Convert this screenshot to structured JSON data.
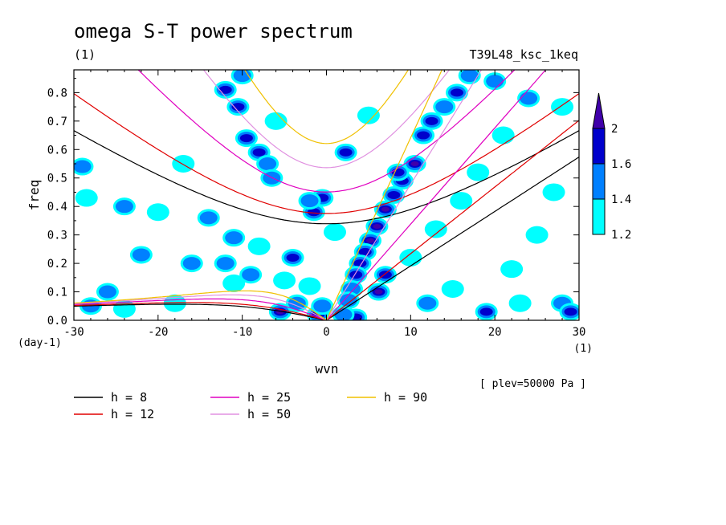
{
  "colors": {
    "c_1_2": "#00ffff",
    "c_1_4": "#0080ff",
    "c_1_6": "#0000cc",
    "c_2": "#4000aa",
    "h8": "#000000",
    "h12": "#e00000",
    "h25": "#e000c0",
    "h50": "#e090e0",
    "h90": "#f0c000"
  },
  "chart_data": {
    "type": "heatmap",
    "title": "omega S-T power spectrum",
    "subtitle_left": "(1)",
    "subtitle_right": "T39L48_ksc_1keq",
    "xlabel": "wvn",
    "ylabel": "freq",
    "x_unit": "(1)",
    "y_unit": "(day-1)",
    "annotation": "[ plev=50000 Pa ]",
    "xlim": [
      -30,
      30
    ],
    "ylim": [
      0,
      0.88
    ],
    "x_ticks": [
      -30,
      -20,
      -10,
      0,
      10,
      20,
      30
    ],
    "x_tick_labels": [
      "-30",
      "-20",
      "-10",
      "0",
      "10",
      "20",
      "30"
    ],
    "y_ticks": [
      0,
      0.1,
      0.2,
      0.3,
      0.4,
      0.5,
      0.6,
      0.7,
      0.8
    ],
    "y_tick_labels": [
      "0.0",
      "0.1",
      "0.2",
      "0.3",
      "0.4",
      "0.5",
      "0.6",
      "0.7",
      "0.8"
    ],
    "colorbar": {
      "levels": [
        1.2,
        1.4,
        1.6,
        2
      ],
      "labels": [
        "1.2",
        "1.4",
        "1.6",
        "2"
      ],
      "colors": [
        "#00ffff",
        "#0080ff",
        "#0000cc",
        "#4000aa"
      ]
    },
    "dispersion_legend": [
      {
        "label": "h =  8",
        "h": 8,
        "color": "#000000"
      },
      {
        "label": "h = 12",
        "h": 12,
        "color": "#e00000"
      },
      {
        "label": "h = 25",
        "h": 25,
        "color": "#e000c0"
      },
      {
        "label": "h = 50",
        "h": 50,
        "color": "#e090e0"
      },
      {
        "label": "h = 90",
        "h": 90,
        "color": "#f0c000"
      }
    ],
    "power_blobs": [
      {
        "x": 6.0,
        "y": 0.33,
        "level": 2
      },
      {
        "x": 5.2,
        "y": 0.28,
        "level": 2
      },
      {
        "x": 4.6,
        "y": 0.24,
        "level": 1.6
      },
      {
        "x": 4.0,
        "y": 0.2,
        "level": 1.6
      },
      {
        "x": 3.5,
        "y": 0.16,
        "level": 1.6
      },
      {
        "x": 3.0,
        "y": 0.11,
        "level": 1.4
      },
      {
        "x": 2.6,
        "y": 0.07,
        "level": 1.4
      },
      {
        "x": 7.0,
        "y": 0.39,
        "level": 2
      },
      {
        "x": 8.0,
        "y": 0.44,
        "level": 1.6
      },
      {
        "x": 9.0,
        "y": 0.49,
        "level": 1.6
      },
      {
        "x": 10.5,
        "y": 0.55,
        "level": 2
      },
      {
        "x": 8.5,
        "y": 0.52,
        "level": 1.6
      },
      {
        "x": 11.5,
        "y": 0.65,
        "level": 1.6
      },
      {
        "x": 12.5,
        "y": 0.7,
        "level": 1.6
      },
      {
        "x": 14.0,
        "y": 0.75,
        "level": 1.4
      },
      {
        "x": 15.5,
        "y": 0.8,
        "level": 1.6
      },
      {
        "x": 17.0,
        "y": 0.86,
        "level": 1.4
      },
      {
        "x": 20.0,
        "y": 0.84,
        "level": 1.4
      },
      {
        "x": 6.2,
        "y": 0.1,
        "level": 2
      },
      {
        "x": 7.0,
        "y": 0.16,
        "level": 1.6
      },
      {
        "x": 3.5,
        "y": 0.01,
        "level": 1.6
      },
      {
        "x": 2.0,
        "y": 0.02,
        "level": 1.4
      },
      {
        "x": -1.0,
        "y": 0.02,
        "level": 1.6
      },
      {
        "x": -0.5,
        "y": 0.05,
        "level": 1.4
      },
      {
        "x": -5.5,
        "y": 0.03,
        "level": 2
      },
      {
        "x": -3.5,
        "y": 0.06,
        "level": 1.4
      },
      {
        "x": -1.5,
        "y": 0.38,
        "level": 1.6
      },
      {
        "x": -0.5,
        "y": 0.43,
        "level": 1.6
      },
      {
        "x": -2.0,
        "y": 0.42,
        "level": 1.4
      },
      {
        "x": -8.0,
        "y": 0.59,
        "level": 1.6
      },
      {
        "x": -9.5,
        "y": 0.64,
        "level": 1.6
      },
      {
        "x": -7.0,
        "y": 0.55,
        "level": 1.4
      },
      {
        "x": -10.5,
        "y": 0.75,
        "level": 1.6
      },
      {
        "x": -12.0,
        "y": 0.81,
        "level": 1.6
      },
      {
        "x": -10.0,
        "y": 0.86,
        "level": 1.4
      },
      {
        "x": -6.5,
        "y": 0.5,
        "level": 1.4
      },
      {
        "x": 2.3,
        "y": 0.59,
        "level": 1.6
      },
      {
        "x": -4.0,
        "y": 0.22,
        "level": 1.6
      },
      {
        "x": -9.0,
        "y": 0.16,
        "level": 1.4
      },
      {
        "x": -12.0,
        "y": 0.2,
        "level": 1.4
      },
      {
        "x": -11.0,
        "y": 0.13,
        "level": 1.2
      },
      {
        "x": -16.0,
        "y": 0.2,
        "level": 1.4
      },
      {
        "x": -22.0,
        "y": 0.23,
        "level": 1.4
      },
      {
        "x": -24.0,
        "y": 0.4,
        "level": 1.4
      },
      {
        "x": -29.0,
        "y": 0.54,
        "level": 1.4
      },
      {
        "x": -28.5,
        "y": 0.43,
        "level": 1.2
      },
      {
        "x": -20.0,
        "y": 0.38,
        "level": 1.2
      },
      {
        "x": -14.0,
        "y": 0.36,
        "level": 1.4
      },
      {
        "x": -11.0,
        "y": 0.29,
        "level": 1.4
      },
      {
        "x": -8.0,
        "y": 0.26,
        "level": 1.2
      },
      {
        "x": -5.0,
        "y": 0.14,
        "level": 1.2
      },
      {
        "x": -26.0,
        "y": 0.1,
        "level": 1.4
      },
      {
        "x": -28.0,
        "y": 0.05,
        "level": 1.4
      },
      {
        "x": -24.0,
        "y": 0.04,
        "level": 1.2
      },
      {
        "x": -18.0,
        "y": 0.06,
        "level": 1.2
      },
      {
        "x": 12.0,
        "y": 0.06,
        "level": 1.4
      },
      {
        "x": 15.0,
        "y": 0.11,
        "level": 1.2
      },
      {
        "x": 19.0,
        "y": 0.03,
        "level": 1.6
      },
      {
        "x": 23.0,
        "y": 0.06,
        "level": 1.2
      },
      {
        "x": 28.0,
        "y": 0.06,
        "level": 1.4
      },
      {
        "x": 29.0,
        "y": 0.03,
        "level": 1.6
      },
      {
        "x": 25.0,
        "y": 0.3,
        "level": 1.2
      },
      {
        "x": 22.0,
        "y": 0.18,
        "level": 1.2
      },
      {
        "x": 27.0,
        "y": 0.45,
        "level": 1.2
      },
      {
        "x": 24.0,
        "y": 0.78,
        "level": 1.4
      },
      {
        "x": 21.0,
        "y": 0.65,
        "level": 1.2
      },
      {
        "x": 18.0,
        "y": 0.52,
        "level": 1.2
      },
      {
        "x": 16.0,
        "y": 0.42,
        "level": 1.2
      },
      {
        "x": 13.0,
        "y": 0.32,
        "level": 1.2
      },
      {
        "x": 10.0,
        "y": 0.22,
        "level": 1.2
      },
      {
        "x": -2.0,
        "y": 0.12,
        "level": 1.2
      },
      {
        "x": 1.0,
        "y": 0.31,
        "level": 1.2
      },
      {
        "x": -17.0,
        "y": 0.55,
        "level": 1.2
      },
      {
        "x": -6.0,
        "y": 0.7,
        "level": 1.2
      },
      {
        "x": 5.0,
        "y": 0.72,
        "level": 1.2
      },
      {
        "x": 28.0,
        "y": 0.75,
        "level": 1.2
      }
    ]
  }
}
